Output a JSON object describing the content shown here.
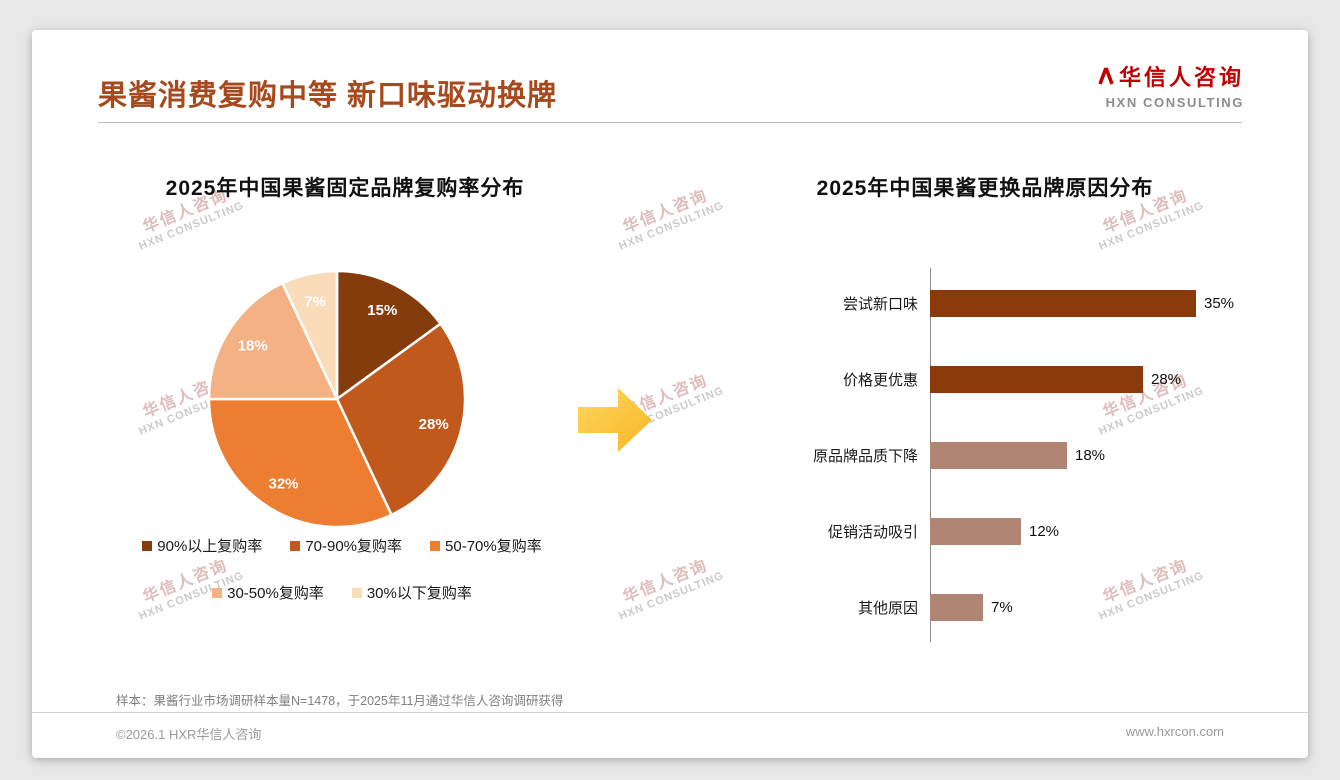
{
  "page": {
    "title": "果酱消费复购中等 新口味驱动换牌",
    "note": "样本：果酱行业市场调研样本量N=1478，于2025年11月通过华信人咨询调研获得",
    "footer_left": "©2026.1 HXR华信人咨询",
    "footer_right": "www.hxrcon.com"
  },
  "logo": {
    "cn": "华信人咨询",
    "en": "HXN CONSULTING"
  },
  "watermark": {
    "cn": "华信人咨询",
    "en": "HXN CONSULTING"
  },
  "accent_colors": {
    "title": "#A6491C",
    "logo_red": "#C00000",
    "arrow": "#FBBF3C"
  },
  "chart_data": [
    {
      "type": "pie",
      "title": "2025年中国果酱固定品牌复购率分布",
      "labels": [
        "90%以上复购率",
        "70-90%复购率",
        "50-70%复购率",
        "30-50%复购率",
        "30%以下复购率"
      ],
      "values": [
        15,
        28,
        32,
        18,
        7
      ],
      "data_labels": [
        "15%",
        "28%",
        "32%",
        "18%",
        "7%"
      ],
      "colors": [
        "#843C0C",
        "#C0591B",
        "#ED7D31",
        "#F4B183",
        "#FADCBB"
      ],
      "legend_position": "bottom"
    },
    {
      "type": "bar",
      "orientation": "horizontal",
      "title": "2025年中国果酱更换品牌原因分布",
      "categories": [
        "尝试新口味",
        "价格更优惠",
        "原品牌品质下降",
        "促销活动吸引",
        "其他原因"
      ],
      "values": [
        35,
        28,
        18,
        12,
        7
      ],
      "value_labels": [
        "35%",
        "28%",
        "18%",
        "12%",
        "7%"
      ],
      "colors": [
        "#8B3A0B",
        "#8B3A0B",
        "#B08573",
        "#B08573",
        "#B08573"
      ],
      "xlim": [
        0,
        40
      ],
      "grid": false
    }
  ]
}
